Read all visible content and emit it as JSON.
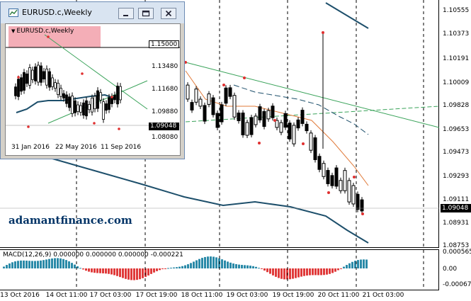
{
  "main_chart": {
    "watermark": "adamantfinance.com",
    "current_price": "1.09048",
    "price_labels": [
      "1.10555",
      "1.10373",
      "1.10191",
      "1.10009",
      "1.09828",
      "1.09653",
      "1.09473",
      "1.09293",
      "1.09111",
      "1.08931",
      "1.08753"
    ],
    "time_labels": [
      "13 Oct 2016",
      "14 Oct 11:00",
      "17 Oct 03:00",
      "17 Oct 19:00",
      "18 Oct 11:00",
      "19 Oct 03:00",
      "19 Oct 19:00",
      "20 Oct 11:00",
      "21 Oct 03:00"
    ]
  },
  "macd": {
    "title": "MACD(12,26,9) 0.000000 0.000000 0.000000 -0.000221",
    "scale_labels": [
      "0.000565",
      "0.00",
      "-0.000672"
    ],
    "left_labels": [
      "0.00",
      "-0.00067"
    ]
  },
  "mini_window": {
    "title": "EURUSD.c,Weekly",
    "chart_label": "EURUSD.c,Weekly",
    "price_labels": [
      "1.13480",
      "1.11680",
      "1.09880",
      "1.08080"
    ],
    "price_box_top": "1.15000",
    "price_box_current": "1.09048",
    "time_labels": [
      "31 Jan 2016",
      "22 May 2016",
      "11 Sep 2016"
    ],
    "buttons": {
      "minimize": "minimize",
      "restore": "restore",
      "close": "close"
    }
  },
  "colors": {
    "bull_bar": "#000000",
    "ma_dark": "#1d4f6b",
    "ma_orange": "#e07a3a",
    "trendline_green": "#3aa35a",
    "marker_red": "#e03030",
    "macd_positive": "#2a8aa8",
    "macd_negative": "#e03a3a",
    "label_bg": "#f2a0aa"
  }
}
